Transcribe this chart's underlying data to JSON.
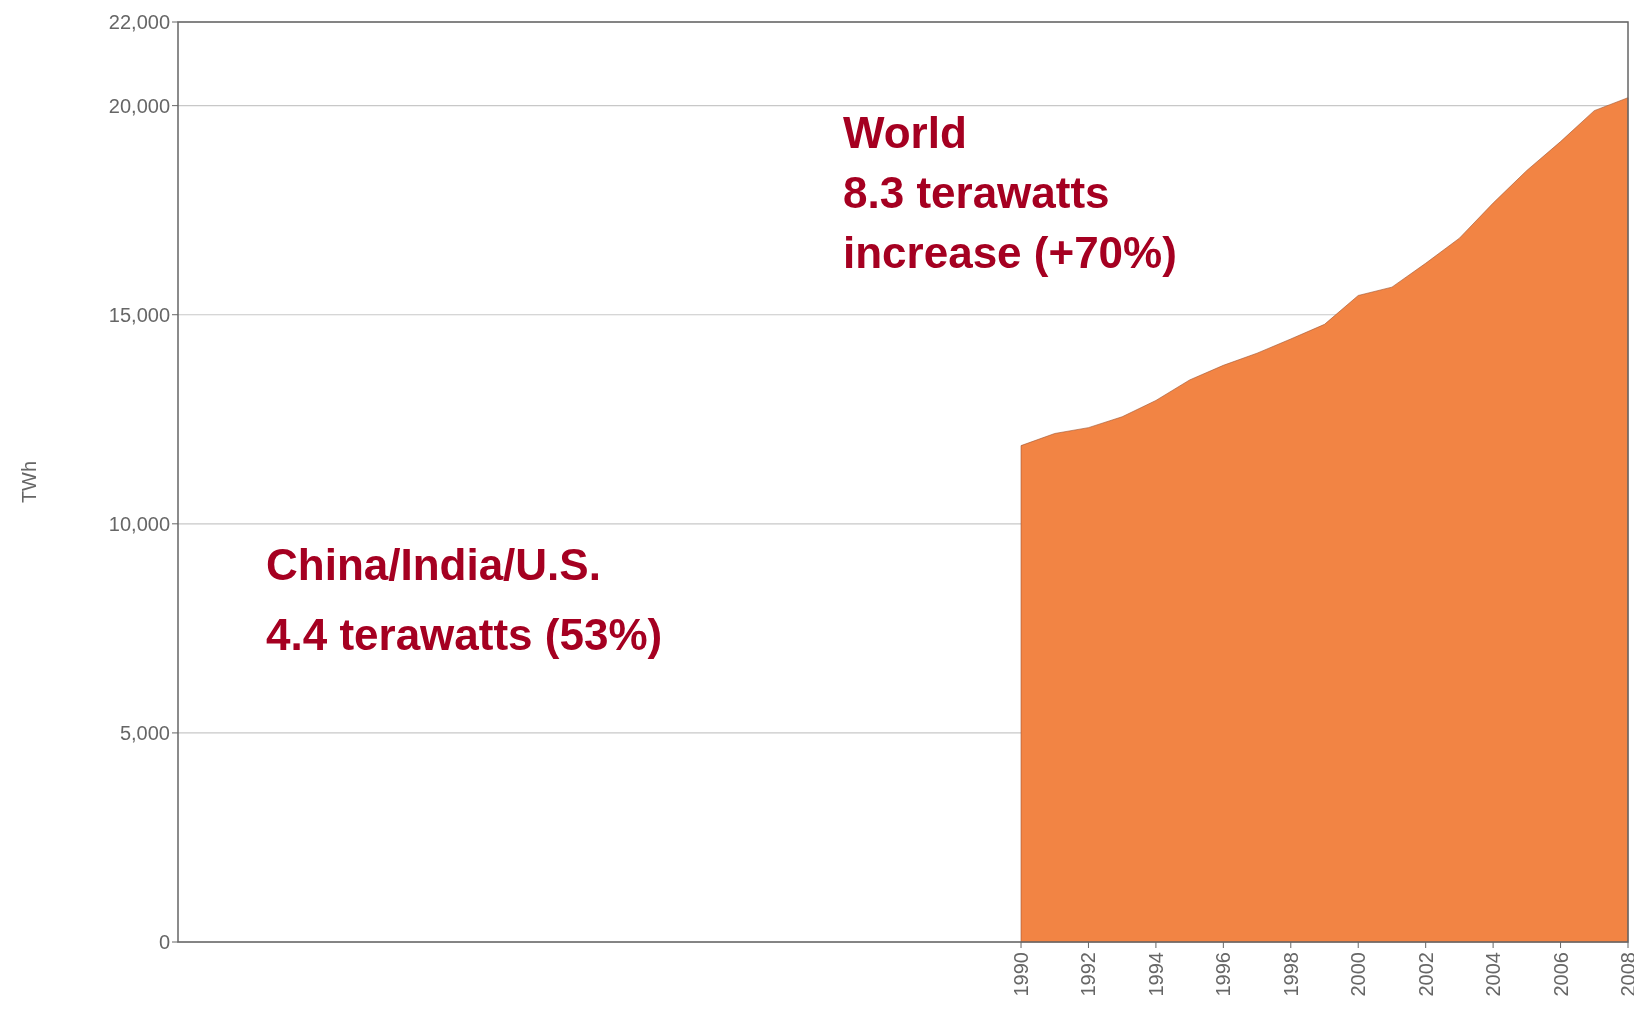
{
  "chart_data": {
    "type": "area",
    "ylabel": "TWh",
    "x": [
      1990,
      1991,
      1992,
      1993,
      1994,
      1995,
      1996,
      1997,
      1998,
      1999,
      2000,
      2001,
      2002,
      2003,
      2004,
      2005,
      2006,
      2007,
      2008
    ],
    "series": [
      {
        "color": "#f28444",
        "values": [
          11870,
          12160,
          12300,
          12560,
          12950,
          13440,
          13790,
          14080,
          14420,
          14770,
          15460,
          15660,
          16230,
          16830,
          17670,
          18450,
          19140,
          19880,
          20190
        ]
      }
    ],
    "xlim": [
      1965,
      2008
    ],
    "xticks": [
      1990,
      1992,
      1994,
      1996,
      1998,
      2000,
      2002,
      2004,
      2006,
      2008
    ],
    "ylim": [
      0,
      22000
    ],
    "yticks": [
      {
        "value": 0,
        "label": "0"
      },
      {
        "value": 5000,
        "label": "5,000"
      },
      {
        "value": 10000,
        "label": "10,000"
      },
      {
        "value": 15000,
        "label": "15,000"
      },
      {
        "value": 20000,
        "label": "20,000"
      },
      {
        "value": 22000,
        "label": "22,000"
      }
    ],
    "grid": "y",
    "annotations": [
      "World\n8.3 terawatts\nincrease (+70%)",
      "China/India/U.S.\n4.4 terawatts (53%)"
    ]
  }
}
